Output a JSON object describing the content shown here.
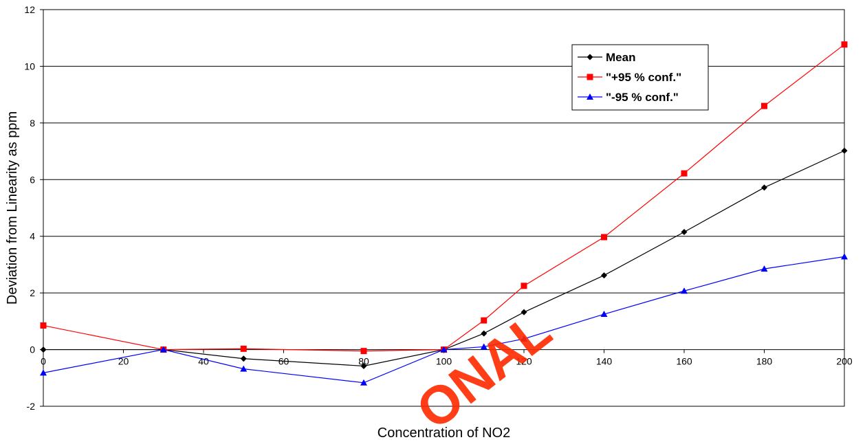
{
  "chart_data": {
    "type": "line",
    "title": "",
    "xlabel": "Concentration of NO2",
    "ylabel": "Deviation from Linearity as ppm",
    "xlim": [
      0,
      200
    ],
    "ylim": [
      -2,
      12
    ],
    "x_ticks": [
      "0",
      "20",
      "40",
      "60",
      "80",
      "100",
      "120",
      "140",
      "160",
      "180",
      "200"
    ],
    "y_ticks": [
      "-2",
      "0",
      "2",
      "4",
      "6",
      "8",
      "10",
      "12"
    ],
    "grid": "horizontal",
    "legend_position": "top-right",
    "x": [
      0,
      30,
      50,
      80,
      100,
      110,
      120,
      140,
      160,
      180,
      200
    ],
    "series": [
      {
        "name": "Mean",
        "color": "#000000",
        "marker": "diamond",
        "values": [
          0,
          0,
          -0.32,
          -0.58,
          0,
          0.57,
          1.32,
          2.62,
          4.15,
          5.72,
          7.02
        ]
      },
      {
        "name": "\"+95 % conf.\"",
        "color": "#ff0000",
        "marker": "square",
        "values": [
          0.85,
          0,
          0.03,
          -0.05,
          0,
          1.03,
          2.25,
          3.97,
          6.22,
          8.6,
          10.77
        ]
      },
      {
        "name": "\"-95 % conf.\"",
        "color": "#0000ff",
        "marker": "triangle",
        "values": [
          -0.82,
          0,
          -0.68,
          -1.17,
          0,
          0.1,
          0.38,
          1.25,
          2.07,
          2.85,
          3.28
        ]
      }
    ]
  },
  "watermark": {
    "text": "ONAL",
    "color": "#ff2a00"
  }
}
